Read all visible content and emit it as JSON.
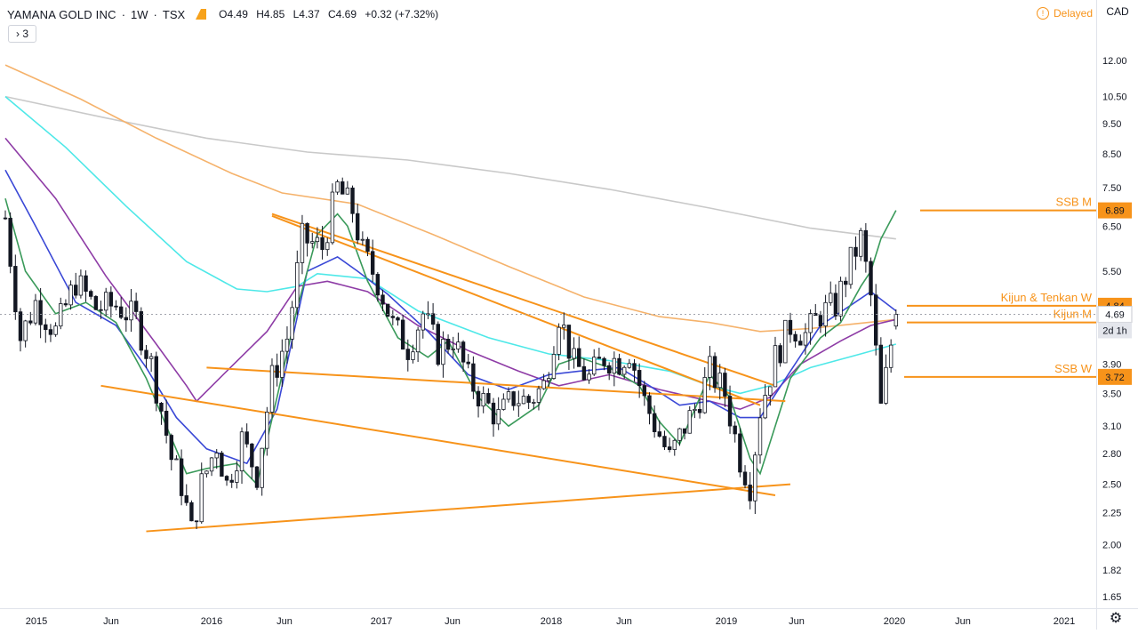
{
  "legend": {
    "symbol": "YAMANA GOLD INC",
    "interval": "1W",
    "exchange": "TSX",
    "open_key": "O",
    "open": "4.49",
    "high_key": "H",
    "high": "4.85",
    "low_key": "L",
    "low": "4.37",
    "close_key": "C",
    "close": "4.69",
    "change": "+0.32 (+7.32%)"
  },
  "indicator_toggle": "› 3",
  "delayed_label": "Delayed",
  "currency": "CAD",
  "colors": {
    "up": "#131722",
    "down": "#131722",
    "orange": "#f7931a",
    "ma_green": "#3a9a5a",
    "ma_blue": "#3a48d6",
    "ma_purple": "#8e3ca6",
    "ma_cyan": "#4ee8e8",
    "ma_orange": "#f5b26b",
    "ma_grey": "#c9c9c9"
  },
  "chart_data": {
    "type": "candlestick",
    "yscale": "log",
    "ylim": [
      1.58,
      13.6
    ],
    "y_ticks": [
      "12.00",
      "10.50",
      "9.50",
      "8.50",
      "7.50",
      "6.50",
      "5.50",
      "4.50",
      "3.90",
      "3.50",
      "3.10",
      "2.80",
      "2.50",
      "2.25",
      "2.00",
      "1.82",
      "1.65"
    ],
    "x_labels": [
      "2015",
      "Jun",
      "2016",
      "Jun",
      "2017",
      "Jun",
      "2018",
      "Jun",
      "2019",
      "Jun",
      "2020",
      "Jun",
      "2021"
    ],
    "last_price": {
      "value": "4.69",
      "countdown": "2d 1h"
    },
    "levels": [
      {
        "label": "SSB M",
        "value": 6.89,
        "price_label": "6.89"
      },
      {
        "label": "Kijun & Tenkan W",
        "value": 4.84,
        "price_label": "4.84"
      },
      {
        "label": "Kijun M",
        "value": 4.55,
        "price_label": ""
      },
      {
        "label": "SSB W",
        "value": 3.72,
        "price_label": "3.72"
      }
    ],
    "price_path": [
      [
        0,
        6.7
      ],
      [
        3,
        4.3
      ],
      [
        6,
        4.9
      ],
      [
        10,
        4.4
      ],
      [
        14,
        5.3
      ],
      [
        18,
        4.8
      ],
      [
        22,
        4.85
      ],
      [
        26,
        4.6
      ],
      [
        29,
        3.9
      ],
      [
        31,
        3.3
      ],
      [
        33,
        2.75
      ],
      [
        35,
        2.5
      ],
      [
        37,
        2.1
      ],
      [
        39,
        2.5
      ],
      [
        42,
        2.9
      ],
      [
        44,
        2.5
      ],
      [
        47,
        2.95
      ],
      [
        50,
        2.6
      ],
      [
        53,
        3.7
      ],
      [
        56,
        4.3
      ],
      [
        59,
        6.2
      ],
      [
        63,
        6.0
      ],
      [
        66,
        7.5
      ],
      [
        69,
        6.9
      ],
      [
        71,
        5.9
      ],
      [
        74,
        5.3
      ],
      [
        77,
        4.5
      ],
      [
        80,
        4.15
      ],
      [
        83,
        4.7
      ],
      [
        86,
        4.1
      ],
      [
        89,
        4.3
      ],
      [
        92,
        3.7
      ],
      [
        95,
        3.4
      ],
      [
        98,
        3.2
      ],
      [
        101,
        3.45
      ],
      [
        104,
        3.4
      ],
      [
        107,
        3.6
      ],
      [
        110,
        4.7
      ],
      [
        113,
        3.9
      ],
      [
        116,
        3.7
      ],
      [
        119,
        4.0
      ],
      [
        122,
        3.95
      ],
      [
        124,
        4.1
      ],
      [
        127,
        3.4
      ],
      [
        130,
        3.0
      ],
      [
        132,
        2.75
      ],
      [
        135,
        3.1
      ],
      [
        137,
        3.3
      ],
      [
        140,
        3.8
      ],
      [
        143,
        3.5
      ],
      [
        146,
        2.75
      ],
      [
        148,
        2.5
      ],
      [
        150,
        3.3
      ],
      [
        153,
        4.0
      ],
      [
        156,
        4.5
      ],
      [
        159,
        4.35
      ],
      [
        162,
        4.7
      ],
      [
        165,
        4.85
      ],
      [
        168,
        5.7
      ],
      [
        170,
        6.2
      ],
      [
        172,
        5.0
      ],
      [
        174,
        3.3
      ],
      [
        176,
        4.2
      ],
      [
        177,
        4.69
      ]
    ],
    "moving_averages": [
      {
        "key": "ma_grey",
        "points": [
          [
            0,
            10.5
          ],
          [
            20,
            9.7
          ],
          [
            40,
            9.0
          ],
          [
            60,
            8.55
          ],
          [
            80,
            8.3
          ],
          [
            100,
            7.9
          ],
          [
            120,
            7.45
          ],
          [
            140,
            6.95
          ],
          [
            160,
            6.45
          ],
          [
            177,
            6.2
          ]
        ]
      },
      {
        "key": "ma_orange",
        "points": [
          [
            0,
            11.8
          ],
          [
            15,
            10.4
          ],
          [
            30,
            9.0
          ],
          [
            45,
            7.9
          ],
          [
            55,
            7.35
          ],
          [
            70,
            7.05
          ],
          [
            85,
            6.3
          ],
          [
            100,
            5.6
          ],
          [
            115,
            5.0
          ],
          [
            130,
            4.65
          ],
          [
            140,
            4.55
          ],
          [
            150,
            4.4
          ],
          [
            160,
            4.45
          ],
          [
            177,
            4.6
          ]
        ]
      },
      {
        "key": "ma_cyan",
        "points": [
          [
            0,
            10.5
          ],
          [
            12,
            8.7
          ],
          [
            24,
            7.0
          ],
          [
            36,
            5.7
          ],
          [
            46,
            5.15
          ],
          [
            52,
            5.1
          ],
          [
            58,
            5.2
          ],
          [
            62,
            5.45
          ],
          [
            72,
            5.35
          ],
          [
            82,
            4.75
          ],
          [
            96,
            4.3
          ],
          [
            108,
            4.05
          ],
          [
            120,
            3.95
          ],
          [
            132,
            3.8
          ],
          [
            140,
            3.6
          ],
          [
            146,
            3.5
          ],
          [
            152,
            3.6
          ],
          [
            160,
            3.85
          ],
          [
            170,
            4.05
          ],
          [
            177,
            4.2
          ]
        ]
      },
      {
        "key": "ma_purple",
        "points": [
          [
            0,
            9.0
          ],
          [
            10,
            7.2
          ],
          [
            20,
            5.4
          ],
          [
            30,
            4.2
          ],
          [
            36,
            3.6
          ],
          [
            38,
            3.4
          ],
          [
            44,
            3.8
          ],
          [
            52,
            4.4
          ],
          [
            58,
            5.2
          ],
          [
            64,
            5.3
          ],
          [
            72,
            5.1
          ],
          [
            82,
            4.5
          ],
          [
            92,
            4.1
          ],
          [
            102,
            3.8
          ],
          [
            110,
            3.6
          ],
          [
            120,
            3.75
          ],
          [
            130,
            3.55
          ],
          [
            140,
            3.4
          ],
          [
            146,
            3.3
          ],
          [
            152,
            3.45
          ],
          [
            158,
            3.9
          ],
          [
            166,
            4.25
          ],
          [
            172,
            4.5
          ],
          [
            177,
            4.6
          ]
        ]
      },
      {
        "key": "ma_blue",
        "points": [
          [
            0,
            8.0
          ],
          [
            6,
            6.5
          ],
          [
            14,
            4.9
          ],
          [
            22,
            4.5
          ],
          [
            28,
            3.85
          ],
          [
            34,
            3.2
          ],
          [
            40,
            2.85
          ],
          [
            48,
            2.7
          ],
          [
            54,
            3.3
          ],
          [
            60,
            5.5
          ],
          [
            66,
            5.8
          ],
          [
            70,
            5.5
          ],
          [
            76,
            5.05
          ],
          [
            84,
            4.4
          ],
          [
            92,
            3.75
          ],
          [
            100,
            3.55
          ],
          [
            108,
            3.75
          ],
          [
            114,
            3.8
          ],
          [
            122,
            3.85
          ],
          [
            128,
            3.6
          ],
          [
            134,
            3.35
          ],
          [
            140,
            3.4
          ],
          [
            146,
            3.2
          ],
          [
            150,
            3.2
          ],
          [
            156,
            3.8
          ],
          [
            162,
            4.5
          ],
          [
            168,
            4.85
          ],
          [
            172,
            5.1
          ],
          [
            177,
            4.75
          ]
        ]
      },
      {
        "key": "ma_green",
        "points": [
          [
            0,
            7.2
          ],
          [
            4,
            5.5
          ],
          [
            10,
            4.7
          ],
          [
            16,
            4.9
          ],
          [
            22,
            4.55
          ],
          [
            28,
            3.7
          ],
          [
            32,
            3.1
          ],
          [
            36,
            2.6
          ],
          [
            40,
            2.65
          ],
          [
            46,
            2.7
          ],
          [
            50,
            2.5
          ],
          [
            54,
            3.45
          ],
          [
            58,
            4.8
          ],
          [
            62,
            6.3
          ],
          [
            66,
            6.8
          ],
          [
            68,
            6.5
          ],
          [
            72,
            5.3
          ],
          [
            78,
            4.3
          ],
          [
            84,
            4.0
          ],
          [
            88,
            4.25
          ],
          [
            94,
            3.45
          ],
          [
            100,
            3.1
          ],
          [
            106,
            3.35
          ],
          [
            110,
            3.9
          ],
          [
            114,
            4.0
          ],
          [
            120,
            3.85
          ],
          [
            126,
            3.6
          ],
          [
            130,
            3.15
          ],
          [
            134,
            2.9
          ],
          [
            140,
            3.75
          ],
          [
            144,
            3.45
          ],
          [
            148,
            2.75
          ],
          [
            150,
            2.6
          ],
          [
            156,
            3.7
          ],
          [
            162,
            4.3
          ],
          [
            166,
            4.55
          ],
          [
            170,
            5.2
          ],
          [
            172,
            5.5
          ],
          [
            174,
            6.2
          ],
          [
            177,
            6.89
          ]
        ]
      }
    ],
    "trendlines": [
      [
        [
          53,
          6.8
        ],
        [
          153,
          3.6
        ]
      ],
      [
        [
          40,
          3.85
        ],
        [
          155,
          3.4
        ]
      ],
      [
        [
          19,
          3.6
        ],
        [
          153,
          2.4
        ]
      ],
      [
        [
          28,
          2.1
        ],
        [
          156,
          2.5
        ]
      ],
      [
        [
          53,
          6.75
        ],
        [
          150,
          3.35
        ]
      ]
    ]
  }
}
